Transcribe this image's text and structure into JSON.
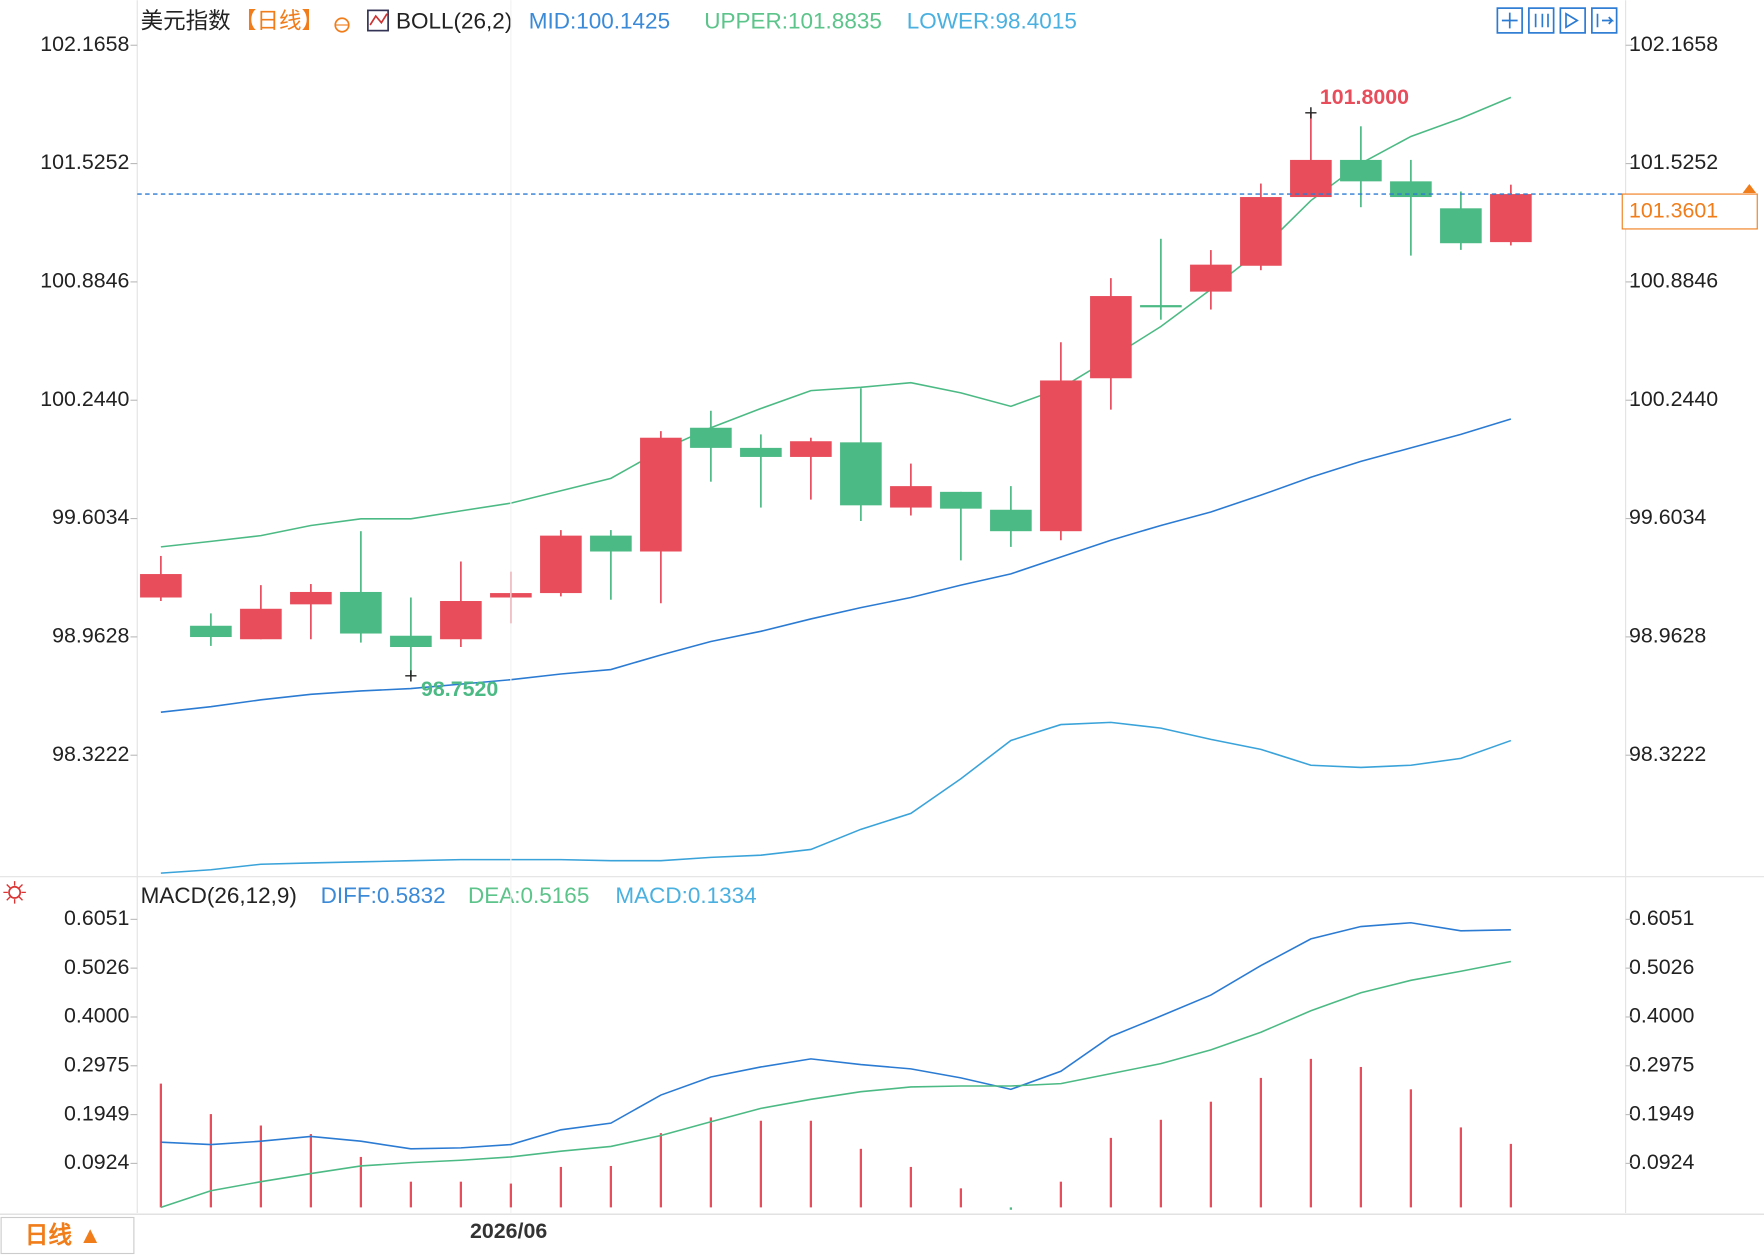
{
  "chart_data": [
    {
      "type": "candlestick",
      "title": "美元指数",
      "period": "【日线】",
      "indicator": "BOLL(26,2)",
      "categories": [
        null,
        null,
        null,
        null,
        null,
        null,
        null,
        "2026/06",
        null,
        null,
        null,
        null,
        null,
        null,
        null,
        null,
        null,
        null,
        null,
        null,
        null,
        null,
        null,
        null,
        null,
        null,
        null,
        null
      ],
      "open": [
        99.176,
        99.023,
        98.95,
        99.139,
        99.206,
        98.969,
        98.95,
        99.176,
        99.2,
        99.511,
        99.425,
        100.095,
        99.986,
        99.937,
        100.016,
        99.663,
        99.748,
        99.651,
        99.535,
        100.363,
        100.759,
        100.832,
        100.972,
        101.344,
        101.545,
        101.429,
        101.283,
        101.1
      ],
      "high": [
        99.401,
        99.09,
        99.243,
        99.249,
        99.535,
        99.176,
        99.371,
        99.316,
        99.541,
        99.541,
        100.077,
        100.187,
        100.059,
        100.041,
        100.309,
        99.901,
        99.748,
        99.779,
        100.558,
        100.905,
        101.118,
        101.057,
        101.417,
        101.8,
        101.727,
        101.545,
        101.374,
        101.411
      ],
      "low": [
        99.157,
        98.914,
        98.95,
        98.95,
        98.932,
        98.752,
        98.908,
        99.036,
        99.182,
        99.164,
        99.145,
        99.803,
        99.663,
        99.706,
        99.59,
        99.62,
        99.377,
        99.45,
        99.486,
        100.193,
        100.68,
        100.735,
        100.948,
        101.344,
        101.289,
        101.027,
        101.058,
        101.082
      ],
      "close": [
        99.303,
        98.962,
        99.115,
        99.206,
        98.981,
        98.908,
        99.157,
        99.2,
        99.511,
        99.425,
        100.041,
        99.986,
        99.937,
        100.022,
        99.675,
        99.779,
        99.657,
        99.535,
        100.351,
        100.808,
        100.747,
        100.978,
        101.344,
        101.545,
        101.429,
        101.344,
        101.094,
        101.3601
      ],
      "up_color": "#e84d5b",
      "down_color": "#4cba84",
      "high_label": "101.8000",
      "low_label": "98.7520",
      "series": [
        {
          "name": "MID:100.1425",
          "color": "#2b7bd3",
          "label_color": "#3b8ad8",
          "values": [
            98.555,
            98.585,
            98.622,
            98.652,
            98.67,
            98.683,
            98.707,
            98.731,
            98.762,
            98.786,
            98.865,
            98.938,
            98.993,
            99.06,
            99.121,
            99.176,
            99.243,
            99.304,
            99.395,
            99.486,
            99.566,
            99.639,
            99.73,
            99.827,
            99.913,
            99.986,
            100.059,
            100.1425
          ]
        },
        {
          "name": "UPPER:101.8835",
          "color": "#4cba84",
          "label_color": "#5cc48a",
          "values": [
            99.45,
            99.48,
            99.511,
            99.566,
            99.602,
            99.602,
            99.645,
            99.687,
            99.754,
            99.821,
            99.973,
            100.095,
            100.199,
            100.296,
            100.314,
            100.339,
            100.284,
            100.211,
            100.309,
            100.473,
            100.643,
            100.844,
            101.058,
            101.325,
            101.526,
            101.672,
            101.77,
            101.8835
          ]
        },
        {
          "name": "LOWER:98.4015",
          "color": "#3aa3d9",
          "label_color": "#4ab0e0",
          "values": [
            97.684,
            97.702,
            97.732,
            97.739,
            97.745,
            97.751,
            97.757,
            97.757,
            97.757,
            97.751,
            97.751,
            97.769,
            97.781,
            97.812,
            97.921,
            98.007,
            98.195,
            98.402,
            98.488,
            98.5,
            98.469,
            98.408,
            98.354,
            98.268,
            98.256,
            98.268,
            98.305,
            98.4015
          ]
        }
      ],
      "ylim": [
        97.671,
        102.4094
      ],
      "yticks": [
        102.1658,
        101.5252,
        100.8846,
        {
          "value": 100.244,
          "label": "100.2440"
        },
        99.6034,
        98.9628,
        98.3222
      ],
      "grid": false
    },
    {
      "type": "macd",
      "title": "MACD(26,12,9)",
      "series": [
        {
          "name": "DIFF:0.5832",
          "color": "#2b7bd3",
          "label_color": "#3b8ad8",
          "values": [
            0.137,
            0.132,
            0.139,
            0.149,
            0.139,
            0.123,
            0.125,
            0.132,
            0.163,
            0.177,
            0.236,
            0.274,
            0.295,
            0.312,
            0.3,
            0.291,
            0.272,
            0.248,
            0.286,
            0.359,
            0.402,
            0.446,
            0.508,
            0.564,
            0.59,
            0.598,
            0.581,
            0.5832
          ]
        },
        {
          "name": "DEA:0.5165",
          "color": "#4cba84",
          "label_color": "#5cc48a",
          "values": [
            0.0,
            0.035,
            0.054,
            0.071,
            0.087,
            0.094,
            0.099,
            0.106,
            0.118,
            0.128,
            0.151,
            0.18,
            0.208,
            0.227,
            0.243,
            0.253,
            0.255,
            0.255,
            0.26,
            0.281,
            0.302,
            0.331,
            0.368,
            0.413,
            0.451,
            0.477,
            0.496,
            0.5165
          ]
        }
      ],
      "histogram": {
        "name": "MACD:0.1334",
        "color": "#e84d5b",
        "down_color": "#4cba84",
        "label_color": "#4ab0e0",
        "values": [
          0.26,
          0.196,
          0.172,
          0.154,
          0.106,
          0.054,
          0.054,
          0.05,
          0.085,
          0.087,
          0.156,
          0.189,
          0.182,
          0.182,
          0.123,
          0.085,
          0.04,
          -0.005,
          0.054,
          0.146,
          0.184,
          0.222,
          0.272,
          0.312,
          0.295,
          0.248,
          0.168,
          0.1334
        ]
      },
      "ylim": [
        -0.0118,
        0.6925
      ],
      "yticks": [
        0.6051,
        0.5026,
        {
          "value": 0.4,
          "label": "0.4000"
        },
        0.2975,
        0.1949,
        0.0924
      ],
      "grid": false
    }
  ]
}
